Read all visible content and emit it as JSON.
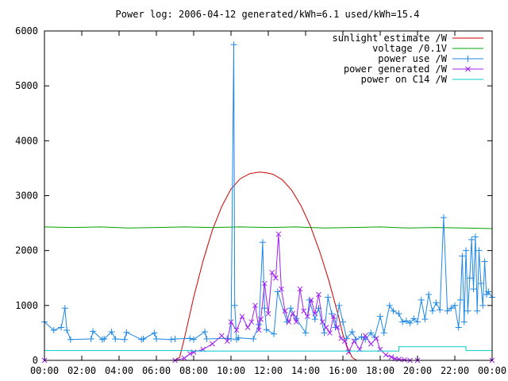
{
  "chart_data": {
    "type": "line",
    "title": "Power log: 2006-04-12 generated/kWh=6.1 used/kWh=15.4",
    "xlabel": "",
    "ylabel": "",
    "xlim": [
      0,
      24
    ],
    "ylim": [
      0,
      6000
    ],
    "yticks": [
      0,
      1000,
      2000,
      3000,
      4000,
      5000,
      6000
    ],
    "xticks": [
      {
        "v": 0,
        "label": "00:00"
      },
      {
        "v": 2,
        "label": "02:00"
      },
      {
        "v": 4,
        "label": "04:00"
      },
      {
        "v": 6,
        "label": "06:00"
      },
      {
        "v": 8,
        "label": "08:00"
      },
      {
        "v": 10,
        "label": "10:00"
      },
      {
        "v": 12,
        "label": "12:00"
      },
      {
        "v": 14,
        "label": "14:00"
      },
      {
        "v": 16,
        "label": "16:00"
      },
      {
        "v": 18,
        "label": "18:00"
      },
      {
        "v": 20,
        "label": "20:00"
      },
      {
        "v": 22,
        "label": "22:00"
      },
      {
        "v": 24,
        "label": "00:00"
      }
    ],
    "grid": false,
    "legend_position": "top-right",
    "series": [
      {
        "name": "sunlight estimate /W",
        "color": "#cc0000",
        "marker": "none",
        "x": [
          0,
          7,
          7.25,
          7.5,
          8,
          8.5,
          9,
          9.5,
          10,
          10.5,
          11,
          11.5,
          11.85,
          12.25,
          12.75,
          13.25,
          13.75,
          14.25,
          14.75,
          15.25,
          15.75,
          16,
          16.25,
          16.5,
          16.75,
          24
        ],
        "y": [
          0,
          0,
          60,
          400,
          1150,
          1810,
          2370,
          2800,
          3120,
          3310,
          3400,
          3430,
          3420,
          3390,
          3290,
          3100,
          2820,
          2450,
          1990,
          1450,
          820,
          470,
          230,
          50,
          0,
          0
        ]
      },
      {
        "name": "voltage /0.1V",
        "color": "#00a000",
        "marker": "none",
        "x": [
          0,
          1.5,
          3,
          4.5,
          6,
          7.5,
          9,
          10.5,
          12,
          13.5,
          15,
          16.5,
          18,
          19.5,
          21,
          22.5,
          24
        ],
        "y": [
          2430,
          2420,
          2430,
          2410,
          2420,
          2430,
          2420,
          2430,
          2420,
          2430,
          2410,
          2420,
          2430,
          2410,
          2420,
          2410,
          2400
        ]
      },
      {
        "name": "power use /W",
        "color": "#1e88e5",
        "marker": "+",
        "x": [
          0,
          0.5,
          0.9,
          1.1,
          1.2,
          1.4,
          2.5,
          2.6,
          3.1,
          3.2,
          3.6,
          3.8,
          4.3,
          4.4,
          5.2,
          5.3,
          5.9,
          6.0,
          6.8,
          7.0,
          7.8,
          8.0,
          8.6,
          8.7,
          9.8,
          10.0,
          10.15,
          10.2,
          10.3,
          10.4,
          11.2,
          11.5,
          11.7,
          11.8,
          11.9,
          12.3,
          12.5,
          13.0,
          13.2,
          13.5,
          14.0,
          14.2,
          14.5,
          14.7,
          15.0,
          15.2,
          15.4,
          15.6,
          15.8,
          16.0,
          16.2,
          16.5,
          16.7,
          17.0,
          17.2,
          17.5,
          17.7,
          18.0,
          18.2,
          18.5,
          18.7,
          19.0,
          19.2,
          19.4,
          19.6,
          19.8,
          20.0,
          20.2,
          20.4,
          20.6,
          20.8,
          21.0,
          21.2,
          21.4,
          21.6,
          21.8,
          22.0,
          22.2,
          22.3,
          22.4,
          22.5,
          22.6,
          22.7,
          22.8,
          22.9,
          23.0,
          23.1,
          23.2,
          23.3,
          23.4,
          23.5,
          23.6,
          23.7,
          23.8,
          24.0
        ],
        "y": [
          700,
          550,
          600,
          950,
          550,
          380,
          390,
          530,
          380,
          390,
          520,
          390,
          380,
          510,
          380,
          390,
          500,
          390,
          380,
          390,
          400,
          380,
          520,
          390,
          400,
          390,
          5750,
          1000,
          380,
          410,
          390,
          650,
          2150,
          950,
          560,
          480,
          1250,
          700,
          950,
          760,
          500,
          1100,
          750,
          950,
          500,
          1150,
          850,
          600,
          1000,
          700,
          400,
          520,
          380,
          430,
          380,
          500,
          420,
          800,
          500,
          1000,
          900,
          850,
          700,
          720,
          680,
          760,
          700,
          1100,
          750,
          1200,
          900,
          1050,
          920,
          2600,
          900,
          950,
          1000,
          600,
          1100,
          1900,
          700,
          2000,
          900,
          1500,
          2200,
          1300,
          2250,
          900,
          2000,
          1400,
          1000,
          1800,
          1200,
          1250,
          1150
        ]
      },
      {
        "name": "power generated /W",
        "color": "#a020f0",
        "marker": "x",
        "x": [
          0,
          7.0,
          7.5,
          7.8,
          8.0,
          8.5,
          9.0,
          9.5,
          9.8,
          10.0,
          10.3,
          10.6,
          10.9,
          11.1,
          11.3,
          11.5,
          11.6,
          11.8,
          12.0,
          12.2,
          12.4,
          12.55,
          12.7,
          12.9,
          13.1,
          13.3,
          13.5,
          13.7,
          13.9,
          14.1,
          14.3,
          14.5,
          14.7,
          14.9,
          15.1,
          15.3,
          15.5,
          15.7,
          15.9,
          16.1,
          16.3,
          16.6,
          16.9,
          17.2,
          17.5,
          17.8,
          18.0,
          18.3,
          18.6,
          18.8,
          19.0,
          19.3,
          19.6,
          20.0,
          24.0
        ],
        "y": [
          0,
          0,
          40,
          120,
          150,
          200,
          300,
          450,
          350,
          700,
          550,
          800,
          600,
          700,
          1000,
          550,
          750,
          1400,
          850,
          1600,
          1500,
          2300,
          1300,
          900,
          700,
          850,
          700,
          1300,
          900,
          800,
          1100,
          850,
          1200,
          700,
          600,
          500,
          800,
          600,
          400,
          350,
          150,
          350,
          200,
          450,
          300,
          400,
          200,
          100,
          60,
          30,
          20,
          10,
          0,
          0,
          0
        ]
      },
      {
        "name": "power on C14 /W",
        "color": "#00cccc",
        "marker": "none",
        "x": [
          0,
          7.8,
          7.8,
          19.0,
          19.0,
          22.6,
          22.6,
          24.0
        ],
        "y": [
          180,
          180,
          170,
          170,
          250,
          250,
          180,
          180
        ]
      }
    ]
  }
}
